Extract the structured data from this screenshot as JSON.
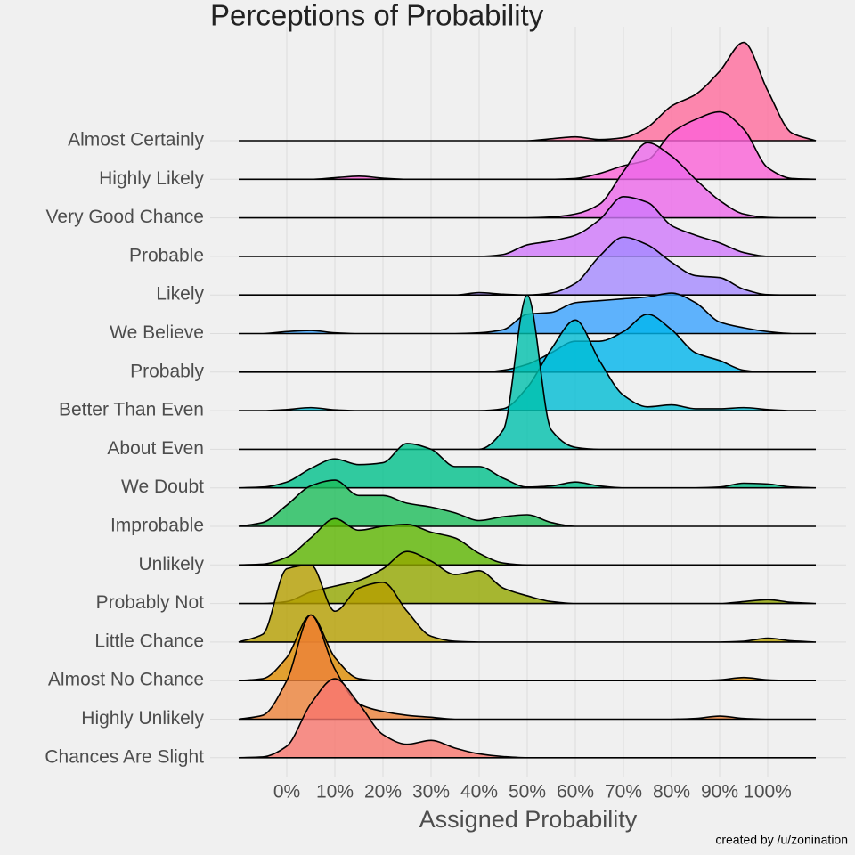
{
  "chart_data": {
    "type": "ridgeline",
    "title": "Perceptions of Probability",
    "x_label": "Assigned Probability",
    "caption": "created by /u/zonination",
    "xlim": [
      -10,
      110
    ],
    "xticks": [
      {
        "value": 0,
        "label": "0%"
      },
      {
        "value": 10,
        "label": "10%"
      },
      {
        "value": 20,
        "label": "20%"
      },
      {
        "value": 30,
        "label": "30%"
      },
      {
        "value": 40,
        "label": "40%"
      },
      {
        "value": 50,
        "label": "50%"
      },
      {
        "value": 60,
        "label": "60%"
      },
      {
        "value": 70,
        "label": "70%"
      },
      {
        "value": 80,
        "label": "80%"
      },
      {
        "value": 90,
        "label": "90%"
      },
      {
        "value": 100,
        "label": "100%"
      }
    ],
    "grid": true,
    "x": [
      -10,
      -5,
      0,
      5,
      10,
      15,
      20,
      25,
      30,
      35,
      40,
      45,
      50,
      55,
      60,
      65,
      70,
      75,
      80,
      85,
      90,
      95,
      100,
      105,
      110
    ],
    "categories": [
      "Almost Certainly",
      "Highly Likely",
      "Very Good Chance",
      "Probable",
      "Likely",
      "We Believe",
      "Probably",
      "Better Than Even",
      "About Even",
      "We Doubt",
      "Improbable",
      "Unlikely",
      "Probably Not",
      "Little Chance",
      "Almost No Chance",
      "Highly Unlikely",
      "Chances Are Slight"
    ],
    "series": [
      {
        "color": "#ff6b9c",
        "values": [
          0,
          0,
          0,
          0,
          0,
          0,
          0,
          0,
          0,
          0,
          0,
          0,
          0,
          0.05,
          0.1,
          0.03,
          0.08,
          0.35,
          0.9,
          1.2,
          1.8,
          2.55,
          1.3,
          0.2,
          0
        ]
      },
      {
        "color": "#fb61d7",
        "values": [
          0,
          0,
          0,
          0,
          0.04,
          0.08,
          0.03,
          0,
          0,
          0,
          0,
          0,
          0,
          0,
          0.02,
          0.15,
          0.35,
          0.5,
          1.2,
          1.55,
          1.75,
          1.3,
          0.3,
          0.02,
          0
        ]
      },
      {
        "color": "#ec68ea",
        "values": [
          0,
          0,
          0,
          0,
          0,
          0,
          0,
          0,
          0,
          0,
          0,
          0,
          0,
          0.02,
          0.1,
          0.35,
          1.2,
          1.95,
          1.6,
          1.0,
          0.45,
          0.1,
          0.01,
          0,
          0
        ]
      },
      {
        "color": "#d078fb",
        "values": [
          0,
          0,
          0,
          0,
          0,
          0,
          0,
          0,
          0,
          0,
          0,
          0.05,
          0.3,
          0.4,
          0.55,
          0.95,
          1.55,
          1.4,
          0.8,
          0.55,
          0.35,
          0.1,
          0,
          0,
          0
        ]
      },
      {
        "color": "#a58aff",
        "values": [
          0,
          0,
          0,
          0,
          0,
          0,
          0,
          0,
          0,
          0,
          0.06,
          0.02,
          0,
          0.05,
          0.3,
          1.0,
          1.5,
          1.3,
          0.85,
          0.5,
          0.45,
          0.15,
          0.01,
          0,
          0
        ]
      },
      {
        "color": "#3aa3ff",
        "values": [
          0,
          0,
          0.05,
          0.08,
          0.02,
          0,
          0,
          0,
          0,
          0,
          0.02,
          0.1,
          0.5,
          0.55,
          0.8,
          0.85,
          0.9,
          0.95,
          1.05,
          0.8,
          0.3,
          0.15,
          0.05,
          0,
          0
        ]
      },
      {
        "color": "#00b5ec",
        "values": [
          0,
          0,
          0,
          0,
          0,
          0,
          0,
          0,
          0,
          0,
          0,
          0.05,
          0.2,
          0.5,
          0.8,
          0.8,
          1.05,
          1.5,
          1.1,
          0.5,
          0.3,
          0.05,
          0,
          0,
          0
        ]
      },
      {
        "color": "#00bdd4",
        "values": [
          0,
          0,
          0.03,
          0.08,
          0.02,
          0,
          0,
          0,
          0,
          0,
          0,
          0.05,
          0.6,
          1.6,
          2.35,
          1.3,
          0.4,
          0.1,
          0.15,
          0.05,
          0.05,
          0.08,
          0.03,
          0,
          0
        ]
      },
      {
        "color": "#00c0ad",
        "values": [
          0,
          0,
          0,
          0,
          0,
          0,
          0,
          0,
          0,
          0,
          0,
          0.5,
          4.0,
          0.5,
          0.05,
          0,
          0,
          0,
          0,
          0,
          0,
          0,
          0,
          0,
          0
        ]
      },
      {
        "color": "#00c08b",
        "values": [
          0,
          0.02,
          0.15,
          0.5,
          0.75,
          0.6,
          0.65,
          1.15,
          1.0,
          0.55,
          0.55,
          0.25,
          0.02,
          0.05,
          0.15,
          0.05,
          0,
          0,
          0,
          0,
          0.02,
          0.12,
          0.1,
          0.02,
          0
        ]
      },
      {
        "color": "#1dbd5a",
        "values": [
          0,
          0.1,
          0.55,
          1.05,
          1.2,
          0.8,
          0.8,
          0.6,
          0.5,
          0.35,
          0.15,
          0.25,
          0.3,
          0.1,
          0,
          0,
          0,
          0,
          0,
          0,
          0,
          0,
          0,
          0,
          0
        ]
      },
      {
        "color": "#5cb500",
        "values": [
          0,
          0.02,
          0.2,
          0.7,
          1.2,
          0.9,
          1.0,
          1.05,
          0.85,
          0.7,
          0.3,
          0.05,
          0,
          0,
          0,
          0,
          0,
          0,
          0,
          0,
          0,
          0,
          0,
          0,
          0
        ]
      },
      {
        "color": "#94a800",
        "values": [
          0,
          0,
          0.05,
          0.3,
          0.45,
          0.6,
          0.9,
          1.35,
          1.1,
          0.75,
          0.85,
          0.4,
          0.2,
          0.05,
          0,
          0,
          0,
          0,
          0,
          0,
          0,
          0.05,
          0.1,
          0.03,
          0
        ]
      },
      {
        "color": "#b59f00",
        "values": [
          0,
          0.2,
          1.9,
          2.0,
          0.8,
          1.4,
          1.55,
          0.8,
          0.15,
          0.02,
          0,
          0,
          0,
          0,
          0,
          0,
          0,
          0,
          0,
          0,
          0,
          0.02,
          0.1,
          0.03,
          0
        ]
      },
      {
        "color": "#df8c00",
        "values": [
          0,
          0.05,
          0.6,
          1.7,
          0.6,
          0.05,
          0,
          0,
          0,
          0,
          0,
          0,
          0,
          0,
          0,
          0,
          0,
          0,
          0,
          0,
          0.02,
          0.08,
          0.02,
          0,
          0
        ]
      },
      {
        "color": "#ec8239",
        "values": [
          0,
          0.1,
          1.0,
          2.7,
          1.3,
          0.4,
          0.2,
          0.1,
          0.05,
          0,
          0,
          0,
          0,
          0,
          0,
          0,
          0,
          0,
          0,
          0.02,
          0.08,
          0.02,
          0,
          0,
          0
        ]
      },
      {
        "color": "#f8766d",
        "values": [
          0,
          0.02,
          0.3,
          1.4,
          2.05,
          1.4,
          0.6,
          0.35,
          0.45,
          0.25,
          0.1,
          0.03,
          0,
          0,
          0,
          0,
          0,
          0,
          0,
          0,
          0,
          0,
          0,
          0,
          0
        ]
      }
    ]
  }
}
